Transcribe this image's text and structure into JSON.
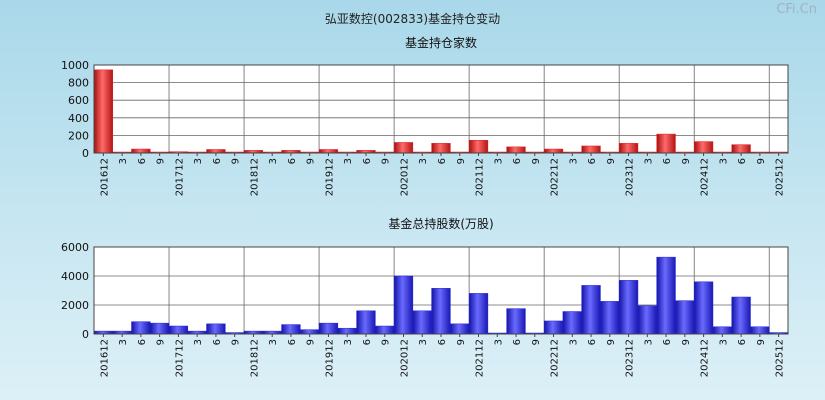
{
  "page_title": "弘亚数控(002833)基金持仓变动",
  "watermark": "CFi.Cn",
  "chart_data": [
    {
      "type": "bar",
      "title": "基金持仓家数",
      "color": "#dd2222",
      "categories": [
        "201612",
        "3",
        "6",
        "9",
        "201712",
        "3",
        "6",
        "9",
        "201812",
        "3",
        "6",
        "9",
        "201912",
        "3",
        "6",
        "9",
        "202012",
        "3",
        "6",
        "9",
        "202112",
        "3",
        "6",
        "9",
        "202212",
        "3",
        "6",
        "9",
        "202312",
        "3",
        "6",
        "9",
        "202412",
        "3",
        "6",
        "9",
        "202512"
      ],
      "values": [
        945,
        4,
        45,
        6,
        15,
        4,
        40,
        5,
        30,
        4,
        30,
        5,
        40,
        4,
        30,
        5,
        120,
        10,
        110,
        10,
        145,
        10,
        70,
        8,
        45,
        10,
        80,
        10,
        110,
        10,
        215,
        10,
        130,
        10,
        95,
        10,
        8
      ],
      "yticks": [
        0,
        200,
        400,
        600,
        800,
        1000
      ],
      "ylim": [
        0,
        1000
      ]
    },
    {
      "type": "bar",
      "title": "基金总持股数(万股)",
      "color": "#2222dd",
      "categories": [
        "201612",
        "3",
        "6",
        "9",
        "201712",
        "3",
        "6",
        "9",
        "201812",
        "3",
        "6",
        "9",
        "201912",
        "3",
        "6",
        "9",
        "202012",
        "3",
        "6",
        "9",
        "202112",
        "3",
        "6",
        "9",
        "202212",
        "3",
        "6",
        "9",
        "202312",
        "3",
        "6",
        "9",
        "202412",
        "3",
        "6",
        "9",
        "202512"
      ],
      "values": [
        200,
        200,
        850,
        750,
        550,
        200,
        700,
        100,
        200,
        200,
        650,
        300,
        750,
        400,
        1600,
        550,
        4000,
        1600,
        3150,
        700,
        2800,
        50,
        1750,
        50,
        900,
        1550,
        3350,
        2250,
        3700,
        1950,
        5300,
        2300,
        3600,
        500,
        2550,
        500,
        100
      ],
      "yticks": [
        0,
        2000,
        4000,
        6000
      ],
      "ylim": [
        0,
        6000
      ]
    }
  ]
}
